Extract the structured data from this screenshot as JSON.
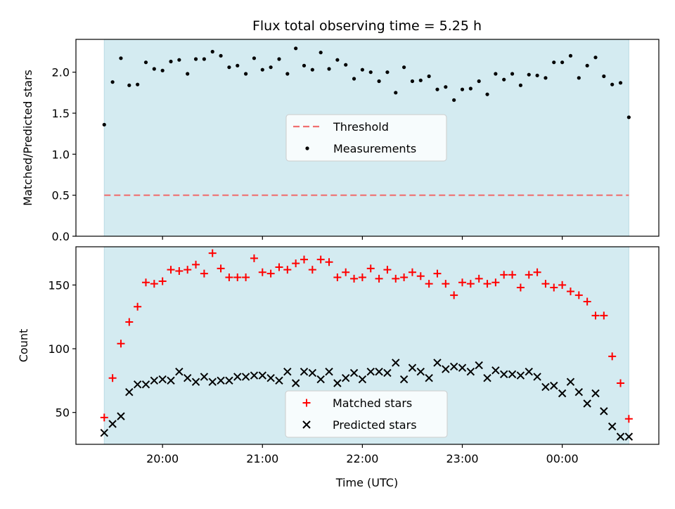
{
  "figure": {
    "title": "Flux total observing time = 5.25 h",
    "xlabel": "Time (UTC)",
    "observing_window": {
      "start": "19:25",
      "end": "00:40"
    }
  },
  "colors": {
    "shade": "#d4ebf1",
    "threshold": "#f07070",
    "matched": "#ff0000",
    "predicted": "#000000",
    "measurement": "#000000"
  },
  "chart_data": [
    {
      "type": "scatter",
      "ylabel": "Matched/Predicted stars",
      "xlim": [
        "19:08",
        "00:58"
      ],
      "ylim": [
        0,
        2.4
      ],
      "yticks": [
        0.0,
        0.5,
        1.0,
        1.5,
        2.0
      ],
      "ytick_labels": [
        "0.0",
        "0.5",
        "1.0",
        "1.5",
        "2.0"
      ],
      "legend_position": "center",
      "threshold": {
        "name": "Threshold",
        "value": 0.5
      },
      "series": [
        {
          "name": "Measurements",
          "x": [
            "19:25",
            "19:30",
            "19:35",
            "19:40",
            "19:45",
            "19:50",
            "19:55",
            "20:00",
            "20:05",
            "20:10",
            "20:15",
            "20:20",
            "20:25",
            "20:30",
            "20:35",
            "20:40",
            "20:45",
            "20:50",
            "20:55",
            "21:00",
            "21:05",
            "21:10",
            "21:15",
            "21:20",
            "21:25",
            "21:30",
            "21:35",
            "21:40",
            "21:45",
            "21:50",
            "21:55",
            "22:00",
            "22:05",
            "22:10",
            "22:15",
            "22:20",
            "22:25",
            "22:30",
            "22:35",
            "22:40",
            "22:45",
            "22:50",
            "22:55",
            "23:00",
            "23:05",
            "23:10",
            "23:15",
            "23:20",
            "23:25",
            "23:30",
            "23:35",
            "23:40",
            "23:45",
            "23:50",
            "23:55",
            "00:00",
            "00:05",
            "00:10",
            "00:15",
            "00:20",
            "00:25",
            "00:30",
            "00:35",
            "00:40"
          ],
          "y": [
            1.36,
            1.88,
            2.17,
            1.84,
            1.85,
            2.12,
            2.04,
            2.02,
            2.13,
            2.15,
            1.98,
            2.16,
            2.16,
            2.25,
            2.2,
            2.06,
            2.08,
            1.98,
            2.17,
            2.03,
            2.06,
            2.16,
            1.98,
            2.29,
            2.08,
            2.03,
            2.24,
            2.04,
            2.15,
            2.09,
            1.92,
            2.03,
            2.0,
            1.89,
            2.0,
            1.75,
            2.06,
            1.89,
            1.9,
            1.95,
            1.79,
            1.82,
            1.66,
            1.79,
            1.8,
            1.89,
            1.73,
            1.98,
            1.91,
            1.98,
            1.84,
            1.97,
            1.96,
            1.93,
            2.12,
            2.12,
            2.2,
            1.93,
            2.08,
            2.18,
            1.95,
            1.85,
            1.87,
            1.45
          ]
        }
      ]
    },
    {
      "type": "scatter",
      "ylabel": "Count",
      "xlim": [
        "19:08",
        "00:58"
      ],
      "ylim": [
        25,
        180
      ],
      "yticks": [
        50,
        100,
        150
      ],
      "ytick_labels": [
        "50",
        "100",
        "150"
      ],
      "xticks": [
        "20:00",
        "21:00",
        "22:00",
        "23:00",
        "00:00"
      ],
      "xtick_labels": [
        "20:00",
        "21:00",
        "22:00",
        "23:00",
        "00:00"
      ],
      "legend_position": "lower center",
      "series": [
        {
          "name": "Matched stars",
          "marker": "plus",
          "x": [
            "19:25",
            "19:30",
            "19:35",
            "19:40",
            "19:45",
            "19:50",
            "19:55",
            "20:00",
            "20:05",
            "20:10",
            "20:15",
            "20:20",
            "20:25",
            "20:30",
            "20:35",
            "20:40",
            "20:45",
            "20:50",
            "20:55",
            "21:00",
            "21:05",
            "21:10",
            "21:15",
            "21:20",
            "21:25",
            "21:30",
            "21:35",
            "21:40",
            "21:45",
            "21:50",
            "21:55",
            "22:00",
            "22:05",
            "22:10",
            "22:15",
            "22:20",
            "22:25",
            "22:30",
            "22:35",
            "22:40",
            "22:45",
            "22:50",
            "22:55",
            "23:00",
            "23:05",
            "23:10",
            "23:15",
            "23:20",
            "23:25",
            "23:30",
            "23:35",
            "23:40",
            "23:45",
            "23:50",
            "23:55",
            "00:00",
            "00:05",
            "00:10",
            "00:15",
            "00:20",
            "00:25",
            "00:30",
            "00:35",
            "00:40"
          ],
          "y": [
            46,
            77,
            104,
            121,
            133,
            152,
            151,
            153,
            162,
            161,
            162,
            166,
            159,
            175,
            163,
            156,
            156,
            156,
            171,
            160,
            159,
            164,
            162,
            167,
            170,
            162,
            170,
            168,
            156,
            160,
            155,
            156,
            163,
            155,
            162,
            155,
            156,
            160,
            157,
            151,
            159,
            151,
            142,
            152,
            151,
            155,
            151,
            152,
            158,
            158,
            148,
            158,
            160,
            151,
            148,
            150,
            145,
            142,
            137,
            126,
            126,
            94,
            73,
            45
          ]
        },
        {
          "name": "Predicted stars",
          "marker": "x",
          "x": [
            "19:25",
            "19:30",
            "19:35",
            "19:40",
            "19:45",
            "19:50",
            "19:55",
            "20:00",
            "20:05",
            "20:10",
            "20:15",
            "20:20",
            "20:25",
            "20:30",
            "20:35",
            "20:40",
            "20:45",
            "20:50",
            "20:55",
            "21:00",
            "21:05",
            "21:10",
            "21:15",
            "21:20",
            "21:25",
            "21:30",
            "21:35",
            "21:40",
            "21:45",
            "21:50",
            "21:55",
            "22:00",
            "22:05",
            "22:10",
            "22:15",
            "22:20",
            "22:25",
            "22:30",
            "22:35",
            "22:40",
            "22:45",
            "22:50",
            "22:55",
            "23:00",
            "23:05",
            "23:10",
            "23:15",
            "23:20",
            "23:25",
            "23:30",
            "23:35",
            "23:40",
            "23:45",
            "23:50",
            "23:55",
            "00:00",
            "00:05",
            "00:10",
            "00:15",
            "00:20",
            "00:25",
            "00:30",
            "00:35",
            "00:40"
          ],
          "y": [
            34,
            41,
            47,
            66,
            72,
            72,
            75,
            76,
            75,
            82,
            77,
            74,
            78,
            74,
            75,
            75,
            78,
            78,
            79,
            79,
            77,
            75,
            82,
            73,
            82,
            81,
            76,
            82,
            73,
            77,
            81,
            76,
            82,
            82,
            81,
            89,
            76,
            85,
            82,
            77,
            89,
            84,
            86,
            85,
            82,
            87,
            77,
            83,
            80,
            80,
            79,
            82,
            78,
            70,
            71,
            65,
            74,
            66,
            57,
            65,
            51,
            39,
            31,
            31
          ]
        }
      ]
    }
  ]
}
